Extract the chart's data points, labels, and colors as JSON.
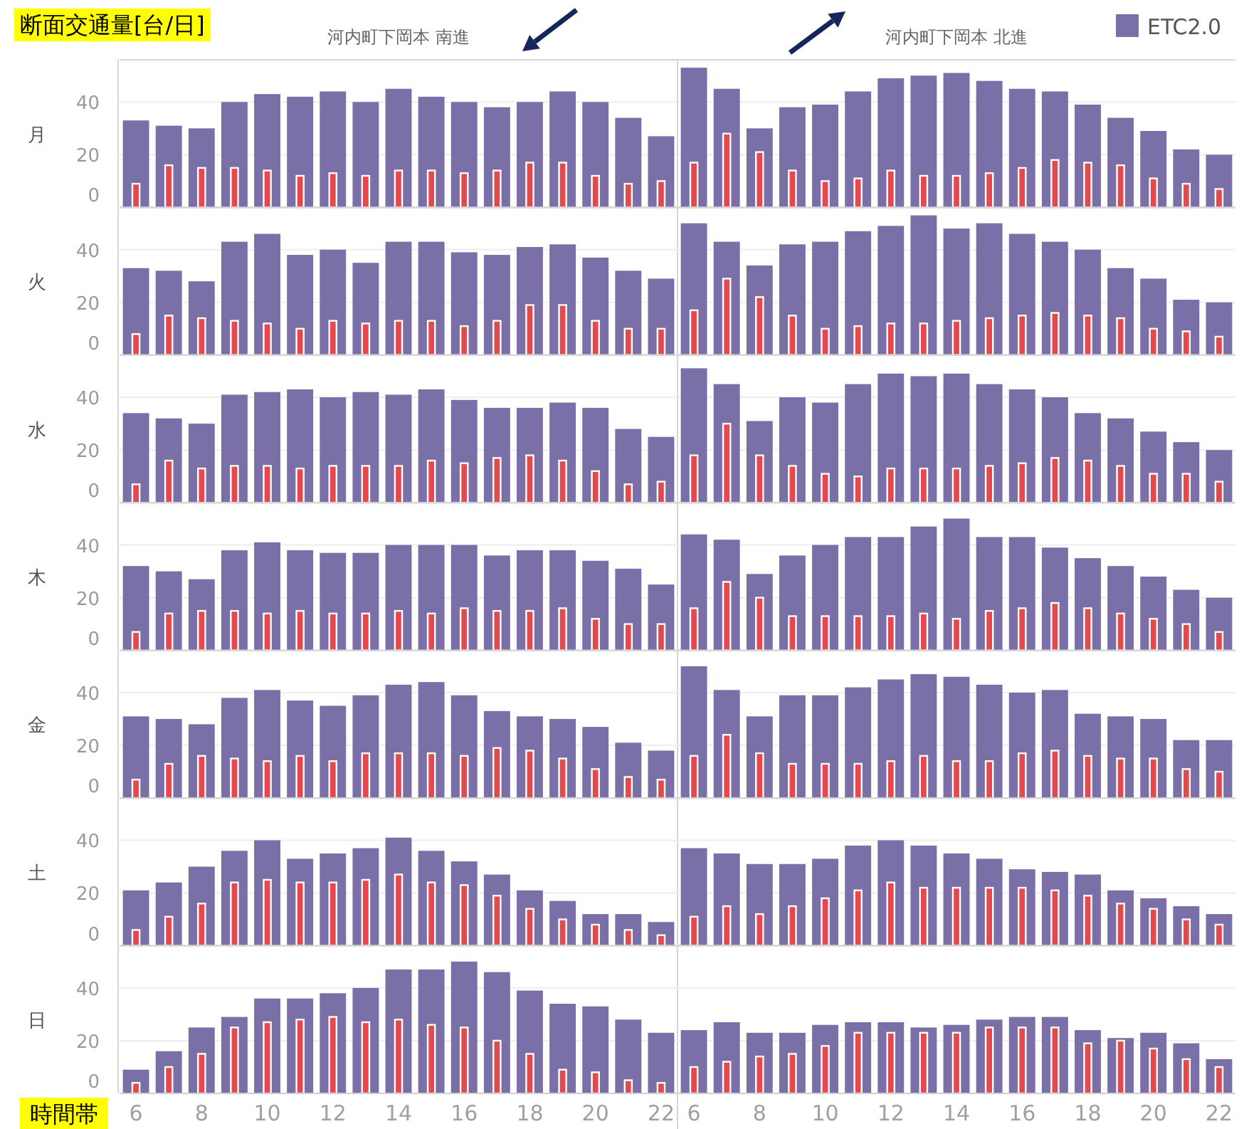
{
  "chart_data": [
    {
      "type": "bar",
      "ylabel": "月",
      "annotations": [
        "断面交通量[台/日]",
        "河内町下岡本 南進",
        "河内町下岡本 北進"
      ],
      "legend": "top right",
      "categories": [
        null,
        null,
        null,
        null,
        null,
        null,
        null,
        null,
        null,
        null,
        null,
        null,
        null,
        null,
        null,
        null,
        null,
        null,
        null,
        null,
        null,
        null,
        null,
        null,
        null,
        null,
        null,
        null,
        null,
        null,
        null,
        null,
        null,
        null
      ],
      "ylim": [
        0,
        56
      ],
      "yticks": [
        0,
        20,
        40
      ],
      "grid": "y",
      "tick_labels": "y",
      "series": [
        {
          "name": "ETC2.0",
          "color": "#7b6fa8",
          "values": [
            33,
            31,
            30,
            40,
            43,
            42,
            44,
            40,
            45,
            42,
            40,
            38,
            40,
            44,
            40,
            34,
            27,
            53,
            45,
            30,
            38,
            39,
            44,
            49,
            50,
            51,
            48,
            45,
            44,
            39,
            34,
            29,
            22,
            20
          ]
        },
        {
          "color": "#e5484d",
          "values": [
            9,
            16,
            15,
            15,
            14,
            12,
            13,
            12,
            14,
            14,
            13,
            14,
            17,
            17,
            12,
            9,
            10,
            17,
            28,
            21,
            14,
            10,
            11,
            14,
            12,
            12,
            13,
            15,
            18,
            17,
            16,
            11,
            9,
            7
          ]
        }
      ]
    },
    {
      "type": "bar",
      "ylabel": "火",
      "categories": [
        null,
        null,
        null,
        null,
        null,
        null,
        null,
        null,
        null,
        null,
        null,
        null,
        null,
        null,
        null,
        null,
        null,
        null,
        null,
        null,
        null,
        null,
        null,
        null,
        null,
        null,
        null,
        null,
        null,
        null,
        null,
        null,
        null,
        null
      ],
      "ylim": [
        0,
        56
      ],
      "yticks": [
        0,
        20,
        40
      ],
      "grid": "y",
      "tick_labels": "y",
      "series": [
        {
          "color": "#7b6fa8",
          "values": [
            33,
            32,
            28,
            43,
            46,
            38,
            40,
            35,
            43,
            43,
            39,
            38,
            41,
            42,
            37,
            32,
            29,
            50,
            43,
            34,
            42,
            43,
            47,
            49,
            53,
            48,
            50,
            46,
            43,
            40,
            33,
            29,
            21,
            20
          ]
        },
        {
          "color": "#e5484d",
          "values": [
            8,
            15,
            14,
            13,
            12,
            10,
            13,
            12,
            13,
            13,
            11,
            13,
            19,
            19,
            13,
            10,
            10,
            17,
            29,
            22,
            15,
            10,
            11,
            12,
            12,
            13,
            14,
            15,
            16,
            15,
            14,
            10,
            9,
            7
          ]
        }
      ]
    },
    {
      "type": "bar",
      "ylabel": "水",
      "categories": [
        null,
        null,
        null,
        null,
        null,
        null,
        null,
        null,
        null,
        null,
        null,
        null,
        null,
        null,
        null,
        null,
        null,
        null,
        null,
        null,
        null,
        null,
        null,
        null,
        null,
        null,
        null,
        null,
        null,
        null,
        null,
        null,
        null,
        null
      ],
      "ylim": [
        0,
        56
      ],
      "yticks": [
        0,
        20,
        40
      ],
      "grid": "y",
      "tick_labels": "y",
      "series": [
        {
          "color": "#7b6fa8",
          "values": [
            34,
            32,
            30,
            41,
            42,
            43,
            40,
            42,
            41,
            43,
            39,
            36,
            36,
            38,
            36,
            28,
            25,
            51,
            45,
            31,
            40,
            38,
            45,
            49,
            48,
            49,
            45,
            43,
            40,
            34,
            32,
            27,
            23,
            20
          ]
        },
        {
          "color": "#e5484d",
          "values": [
            7,
            16,
            13,
            14,
            14,
            13,
            14,
            14,
            14,
            16,
            15,
            17,
            18,
            16,
            12,
            7,
            8,
            18,
            30,
            18,
            14,
            11,
            10,
            13,
            13,
            13,
            14,
            15,
            17,
            16,
            14,
            11,
            11,
            8
          ]
        }
      ]
    },
    {
      "type": "bar",
      "ylabel": "木",
      "categories": [
        null,
        null,
        null,
        null,
        null,
        null,
        null,
        null,
        null,
        null,
        null,
        null,
        null,
        null,
        null,
        null,
        null,
        null,
        null,
        null,
        null,
        null,
        null,
        null,
        null,
        null,
        null,
        null,
        null,
        null,
        null,
        null,
        null,
        null
      ],
      "ylim": [
        0,
        56
      ],
      "yticks": [
        0,
        20,
        40
      ],
      "grid": "y",
      "tick_labels": "y",
      "series": [
        {
          "color": "#7b6fa8",
          "values": [
            32,
            30,
            27,
            38,
            41,
            38,
            37,
            37,
            40,
            40,
            40,
            36,
            38,
            38,
            34,
            31,
            25,
            44,
            42,
            29,
            36,
            40,
            43,
            43,
            47,
            50,
            43,
            43,
            39,
            35,
            32,
            28,
            23,
            20
          ]
        },
        {
          "color": "#e5484d",
          "values": [
            7,
            14,
            15,
            15,
            14,
            15,
            14,
            14,
            15,
            14,
            16,
            15,
            15,
            16,
            12,
            10,
            10,
            16,
            26,
            20,
            13,
            13,
            13,
            13,
            14,
            12,
            15,
            16,
            18,
            16,
            14,
            12,
            10,
            7
          ]
        }
      ]
    },
    {
      "type": "bar",
      "ylabel": "金",
      "categories": [
        null,
        null,
        null,
        null,
        null,
        null,
        null,
        null,
        null,
        null,
        null,
        null,
        null,
        null,
        null,
        null,
        null,
        null,
        null,
        null,
        null,
        null,
        null,
        null,
        null,
        null,
        null,
        null,
        null,
        null,
        null,
        null,
        null,
        null
      ],
      "ylim": [
        0,
        56
      ],
      "yticks": [
        0,
        20,
        40
      ],
      "grid": "y",
      "tick_labels": "y",
      "series": [
        {
          "color": "#7b6fa8",
          "values": [
            31,
            30,
            28,
            38,
            41,
            37,
            35,
            39,
            43,
            44,
            39,
            33,
            31,
            30,
            27,
            21,
            18,
            50,
            41,
            31,
            39,
            39,
            42,
            45,
            47,
            46,
            43,
            40,
            41,
            32,
            31,
            30,
            22,
            22
          ]
        },
        {
          "color": "#e5484d",
          "values": [
            7,
            13,
            16,
            15,
            14,
            16,
            14,
            17,
            17,
            17,
            16,
            19,
            18,
            15,
            11,
            8,
            7,
            16,
            24,
            17,
            13,
            13,
            13,
            14,
            16,
            14,
            14,
            17,
            18,
            16,
            15,
            15,
            11,
            10
          ]
        }
      ]
    },
    {
      "type": "bar",
      "ylabel": "土",
      "categories": [
        null,
        null,
        null,
        null,
        null,
        null,
        null,
        null,
        null,
        null,
        null,
        null,
        null,
        null,
        null,
        null,
        null,
        null,
        null,
        null,
        null,
        null,
        null,
        null,
        null,
        null,
        null,
        null,
        null,
        null,
        null,
        null,
        null,
        null
      ],
      "ylim": [
        0,
        56
      ],
      "yticks": [
        0,
        20,
        40
      ],
      "grid": "y",
      "tick_labels": "y",
      "series": [
        {
          "color": "#7b6fa8",
          "values": [
            21,
            24,
            30,
            36,
            40,
            33,
            35,
            37,
            41,
            36,
            32,
            27,
            21,
            17,
            12,
            12,
            9,
            37,
            35,
            31,
            31,
            33,
            38,
            40,
            38,
            35,
            33,
            29,
            28,
            27,
            21,
            18,
            15,
            12
          ]
        },
        {
          "color": "#e5484d",
          "values": [
            6,
            11,
            16,
            24,
            25,
            24,
            24,
            25,
            27,
            24,
            23,
            19,
            14,
            10,
            8,
            6,
            4,
            11,
            15,
            12,
            15,
            18,
            21,
            24,
            22,
            22,
            22,
            22,
            21,
            19,
            16,
            14,
            10,
            8
          ]
        }
      ]
    },
    {
      "type": "bar",
      "ylabel": "日",
      "xlabel": "時間帯",
      "categories": [
        "6",
        null,
        "8",
        null,
        "10",
        null,
        "12",
        null,
        "14",
        null,
        "16",
        null,
        "18",
        null,
        "20",
        null,
        "22",
        "6",
        null,
        "8",
        null,
        "10",
        null,
        "12",
        null,
        "14",
        null,
        "16",
        null,
        "18",
        null,
        "20",
        null,
        "22"
      ],
      "ylim": [
        0,
        56
      ],
      "yticks": [
        0,
        20,
        40
      ],
      "grid": "y",
      "series": [
        {
          "color": "#7b6fa8",
          "values": [
            9,
            16,
            25,
            29,
            36,
            36,
            38,
            40,
            47,
            47,
            50,
            46,
            39,
            34,
            33,
            28,
            23,
            24,
            27,
            23,
            23,
            26,
            27,
            27,
            25,
            26,
            28,
            29,
            29,
            24,
            21,
            23,
            19,
            13
          ]
        },
        {
          "color": "#e5484d",
          "values": [
            4,
            10,
            15,
            25,
            27,
            28,
            29,
            27,
            28,
            26,
            25,
            20,
            15,
            9,
            8,
            5,
            4,
            10,
            12,
            14,
            15,
            18,
            23,
            23,
            23,
            23,
            25,
            25,
            25,
            19,
            20,
            17,
            13,
            10
          ]
        }
      ]
    }
  ]
}
